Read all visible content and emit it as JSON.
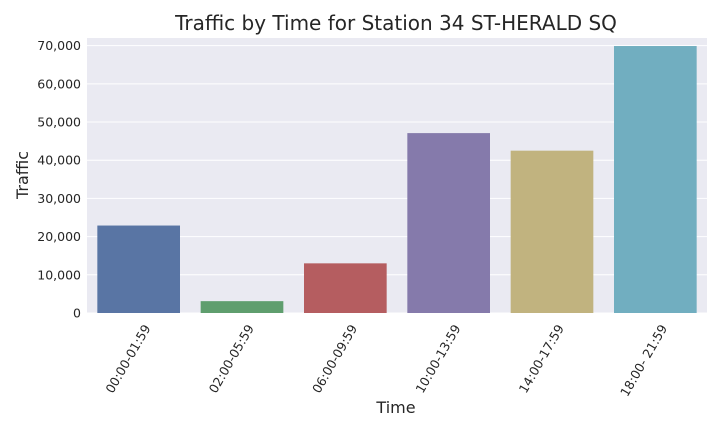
{
  "chart_data": {
    "type": "bar",
    "title": "Traffic by Time for Station 34 ST-HERALD SQ",
    "xlabel": "Time",
    "ylabel": "Traffic",
    "categories": [
      "00:00-01:59",
      "02:00-05:59",
      "06:00-09:59",
      "10:00-13:59",
      "14:00-17:59",
      "18:00- 21:59"
    ],
    "values": [
      22900,
      3100,
      13000,
      47100,
      42500,
      69900
    ],
    "ylim": [
      0,
      72000
    ],
    "yticks": [
      0,
      10000,
      20000,
      30000,
      40000,
      50000,
      60000,
      70000
    ],
    "ytick_labels": [
      "0",
      "10,000",
      "20,000",
      "30,000",
      "40,000",
      "50,000",
      "60,000",
      "70,000"
    ],
    "colors": [
      "#5975a4",
      "#5f9e6e",
      "#b55d60",
      "#857aab",
      "#c1b37f",
      "#71aec0"
    ],
    "background": "#eaeaf2",
    "grid": true,
    "legend": "none"
  }
}
